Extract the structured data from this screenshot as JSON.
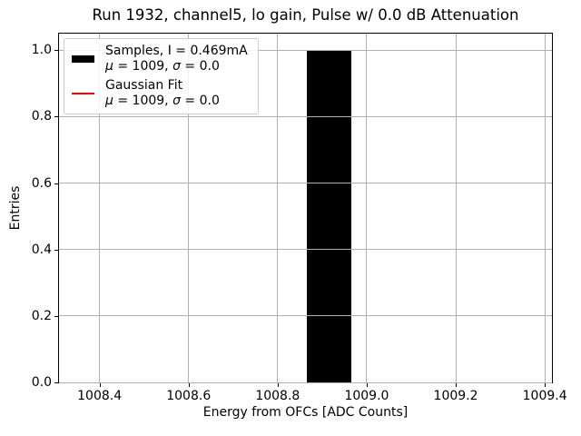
{
  "chart_data": {
    "type": "bar",
    "subtype": "histogram",
    "title": "Run 1932, channel5, lo gain, Pulse w/ 0.0 dB Attenuation",
    "xlabel": "Energy from OFCs [ADC Counts]",
    "ylabel": "Entries",
    "xlim": [
      1008.309,
      1009.416
    ],
    "ylim": [
      0,
      1.05
    ],
    "xticks": [
      1008.4,
      1008.6,
      1008.8,
      1009.0,
      1009.2,
      1009.4
    ],
    "xtick_labels": [
      "1008.4",
      "1008.6",
      "1008.8",
      "1009.0",
      "1009.2",
      "1009.4"
    ],
    "yticks": [
      0.0,
      0.2,
      0.4,
      0.6,
      0.8,
      1.0
    ],
    "ytick_labels": [
      "0.0",
      "0.2",
      "0.4",
      "0.6",
      "0.8",
      "1.0"
    ],
    "grid": true,
    "grid_color": "#b0b0b0",
    "grid_above_bars": true,
    "bars": [
      {
        "bin_start": 1008.866,
        "bin_end": 1008.965,
        "count": 1.0,
        "color": "#000000"
      }
    ],
    "series": [
      {
        "name": "Samples, I = 0.469mA",
        "type": "histogram",
        "mu": 1009,
        "sigma": 0.0,
        "color": "#000000"
      },
      {
        "name": "Gaussian Fit",
        "type": "line",
        "mu": 1009,
        "sigma": 0.0,
        "color": "#ff0000"
      }
    ],
    "legend_position": "upper left"
  },
  "legend": {
    "entries": [
      {
        "swatch_color": "#000000",
        "line1": "Samples, I = 0.469mA",
        "stats": {
          "mu_symbol": "μ",
          "mu_value": " = 1009, ",
          "sigma_symbol": "σ",
          "sigma_value": " = 0.0"
        }
      },
      {
        "swatch_color": "#ff0000",
        "line1": "Gaussian Fit",
        "stats": {
          "mu_symbol": "μ",
          "mu_value": " = 1009, ",
          "sigma_symbol": "σ",
          "sigma_value": " = 0.0"
        }
      }
    ]
  }
}
